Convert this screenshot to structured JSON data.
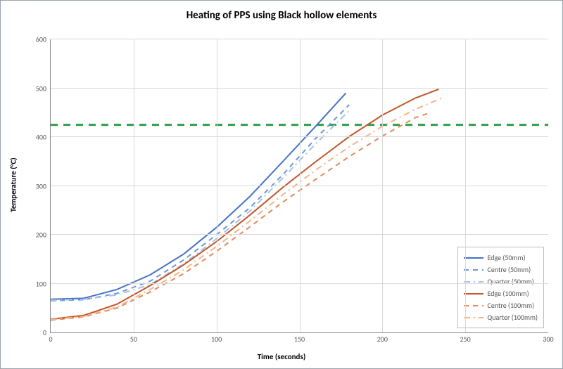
{
  "chart": {
    "type": "line",
    "title": "Heating of PPS using Black hollow elements",
    "title_fontsize": 15,
    "xlabel": "Time (seconds)",
    "ylabel": "Temperature (°C)",
    "label_fontsize": 11,
    "tick_fontsize": 10,
    "background_color": "#ffffff",
    "grid_color": "#d9d9d9",
    "axis_color": "#888888",
    "xlim": [
      0,
      300
    ],
    "ylim": [
      0,
      600
    ],
    "xtick_step": 50,
    "ytick_step": 100,
    "reference_line": {
      "y": 425,
      "color": "#2e9e47",
      "width": 3,
      "dash": "10,8"
    },
    "series": [
      {
        "name": "Edge (50mm)",
        "color": "#4472c4",
        "width": 2,
        "dash": "",
        "x": [
          0,
          20,
          40,
          60,
          80,
          100,
          120,
          140,
          160,
          178
        ],
        "y": [
          68,
          70,
          88,
          118,
          160,
          215,
          278,
          350,
          423,
          490
        ]
      },
      {
        "name": "Centre (50mm)",
        "color": "#6c97d6",
        "width": 2,
        "dash": "7,6",
        "x": [
          0,
          20,
          40,
          60,
          80,
          100,
          120,
          140,
          160,
          180
        ],
        "y": [
          65,
          67,
          80,
          105,
          148,
          200,
          255,
          323,
          398,
          466
        ]
      },
      {
        "name": "Quarter (50mm)",
        "color": "#a7c1e6",
        "width": 2,
        "dash": "9,5,2,5",
        "x": [
          0,
          20,
          40,
          60,
          80,
          100,
          120,
          140,
          160,
          180
        ],
        "y": [
          66,
          68,
          77,
          98,
          140,
          192,
          248,
          316,
          387,
          454
        ]
      },
      {
        "name": "Edge (100mm)",
        "color": "#c15628",
        "width": 2,
        "dash": "",
        "x": [
          0,
          20,
          40,
          60,
          80,
          100,
          120,
          140,
          160,
          180,
          200,
          220,
          234
        ],
        "y": [
          27,
          35,
          58,
          96,
          138,
          186,
          240,
          297,
          350,
          401,
          445,
          480,
          498
        ]
      },
      {
        "name": "Centre (100mm)",
        "color": "#e08a5e",
        "width": 2,
        "dash": "7,6",
        "x": [
          0,
          20,
          40,
          60,
          80,
          100,
          120,
          140,
          160,
          180,
          200,
          220,
          228
        ],
        "y": [
          25,
          32,
          50,
          83,
          120,
          166,
          216,
          267,
          314,
          360,
          402,
          440,
          449
        ]
      },
      {
        "name": "Quarter (100mm)",
        "color": "#f2b48a",
        "width": 2,
        "dash": "9,5,2,5",
        "x": [
          0,
          20,
          40,
          60,
          80,
          100,
          120,
          140,
          160,
          180,
          200,
          220,
          236
        ],
        "y": [
          26,
          33,
          52,
          88,
          128,
          176,
          228,
          282,
          333,
          380,
          422,
          457,
          480
        ]
      }
    ],
    "legend_items": [
      "Edge (50mm)",
      "Centre (50mm)",
      "Quarter (50mm)",
      "Edge (100mm)",
      "Centre (100mm)",
      "Quarter (100mm)"
    ]
  }
}
